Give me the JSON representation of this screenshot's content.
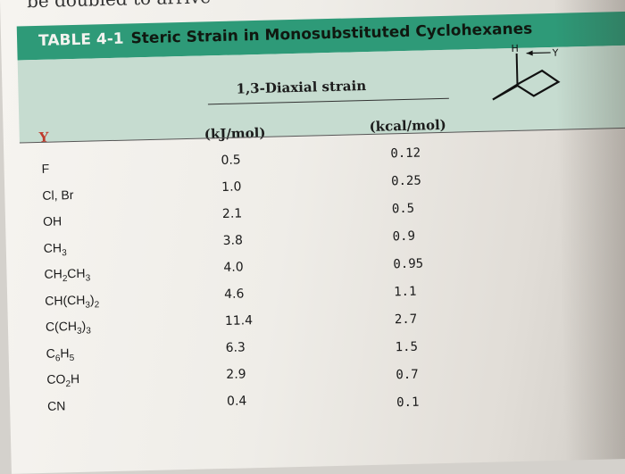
{
  "previous_page_fragment": "be doubled to arrive",
  "table": {
    "label": "TABLE 4-1",
    "caption": "Steric Strain in Monosubstituted Cyclohexanes",
    "group_header": "1,3-Diaxial strain",
    "col_y": "Y",
    "col_kj": "(kJ/mol)",
    "col_kcal": "(kcal/mol)",
    "rows": [
      {
        "y": "F",
        "kj": "0.5",
        "kcal": "0.12"
      },
      {
        "y": "Cl, Br",
        "kj": "1.0",
        "kcal": "0.25"
      },
      {
        "y": "OH",
        "kj": "2.1",
        "kcal": "0.5"
      },
      {
        "y": "CH3",
        "kj": "3.8",
        "kcal": "0.9"
      },
      {
        "y": "CH2CH3",
        "kj": "4.0",
        "kcal": "0.95"
      },
      {
        "y": "CH(CH3)2",
        "kj": "4.6",
        "kcal": "1.1"
      },
      {
        "y": "C(CH3)3",
        "kj": "11.4",
        "kcal": "2.7"
      },
      {
        "y": "C6H5",
        "kj": "6.3",
        "kcal": "1.5"
      },
      {
        "y": "CO2H",
        "kj": "2.9",
        "kcal": "0.7"
      },
      {
        "y": "CN",
        "kj": "0.4",
        "kcal": "0.1"
      }
    ]
  },
  "diagram": {
    "h_label": "H",
    "y_label": "Y"
  }
}
